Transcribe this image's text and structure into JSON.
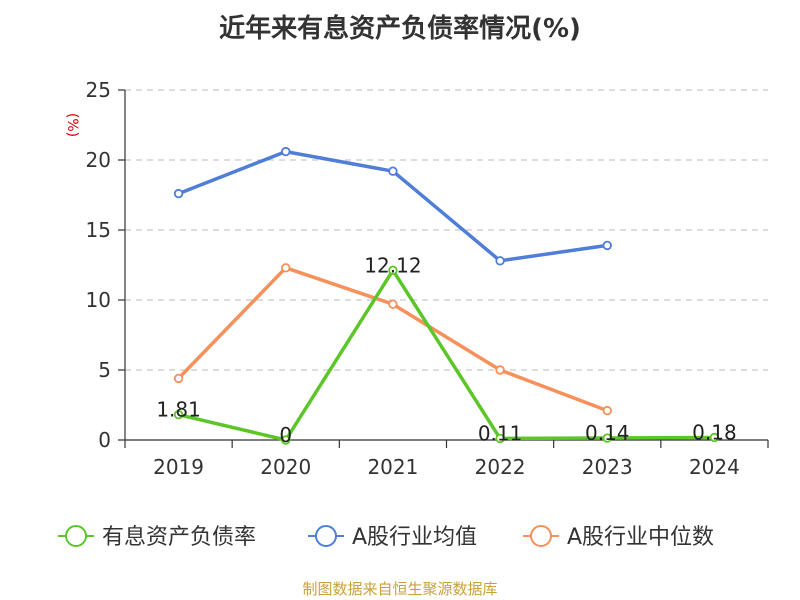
{
  "title": "近年来有息资产负债率情况(%)",
  "source": "制图数据来自恒生聚源数据库",
  "chart_data": {
    "type": "line",
    "title": "近年来有息资产负债率情况(%)",
    "ylabel": "(%)",
    "ylim": [
      0,
      25
    ],
    "y_ticks": [
      0,
      5,
      10,
      15,
      20,
      25
    ],
    "grid": true,
    "legend_position": "bottom",
    "categories": [
      "2019",
      "2020",
      "2021",
      "2022",
      "2023",
      "2024"
    ],
    "series": [
      {
        "name": "有息资产负债率",
        "color": "#5cc629",
        "values": [
          1.81,
          0,
          12.12,
          0.11,
          0.14,
          0.18
        ],
        "labels": [
          "1.81",
          "0",
          "12.12",
          "0.11",
          "0.14",
          "0.18"
        ]
      },
      {
        "name": "A股行业均值",
        "color": "#4f7ed8",
        "values": [
          17.6,
          20.6,
          19.2,
          12.8,
          13.9,
          null
        ]
      },
      {
        "name": "A股行业中位数",
        "color": "#f7905a",
        "values": [
          4.4,
          12.3,
          9.7,
          5.0,
          2.1,
          null
        ]
      }
    ]
  }
}
